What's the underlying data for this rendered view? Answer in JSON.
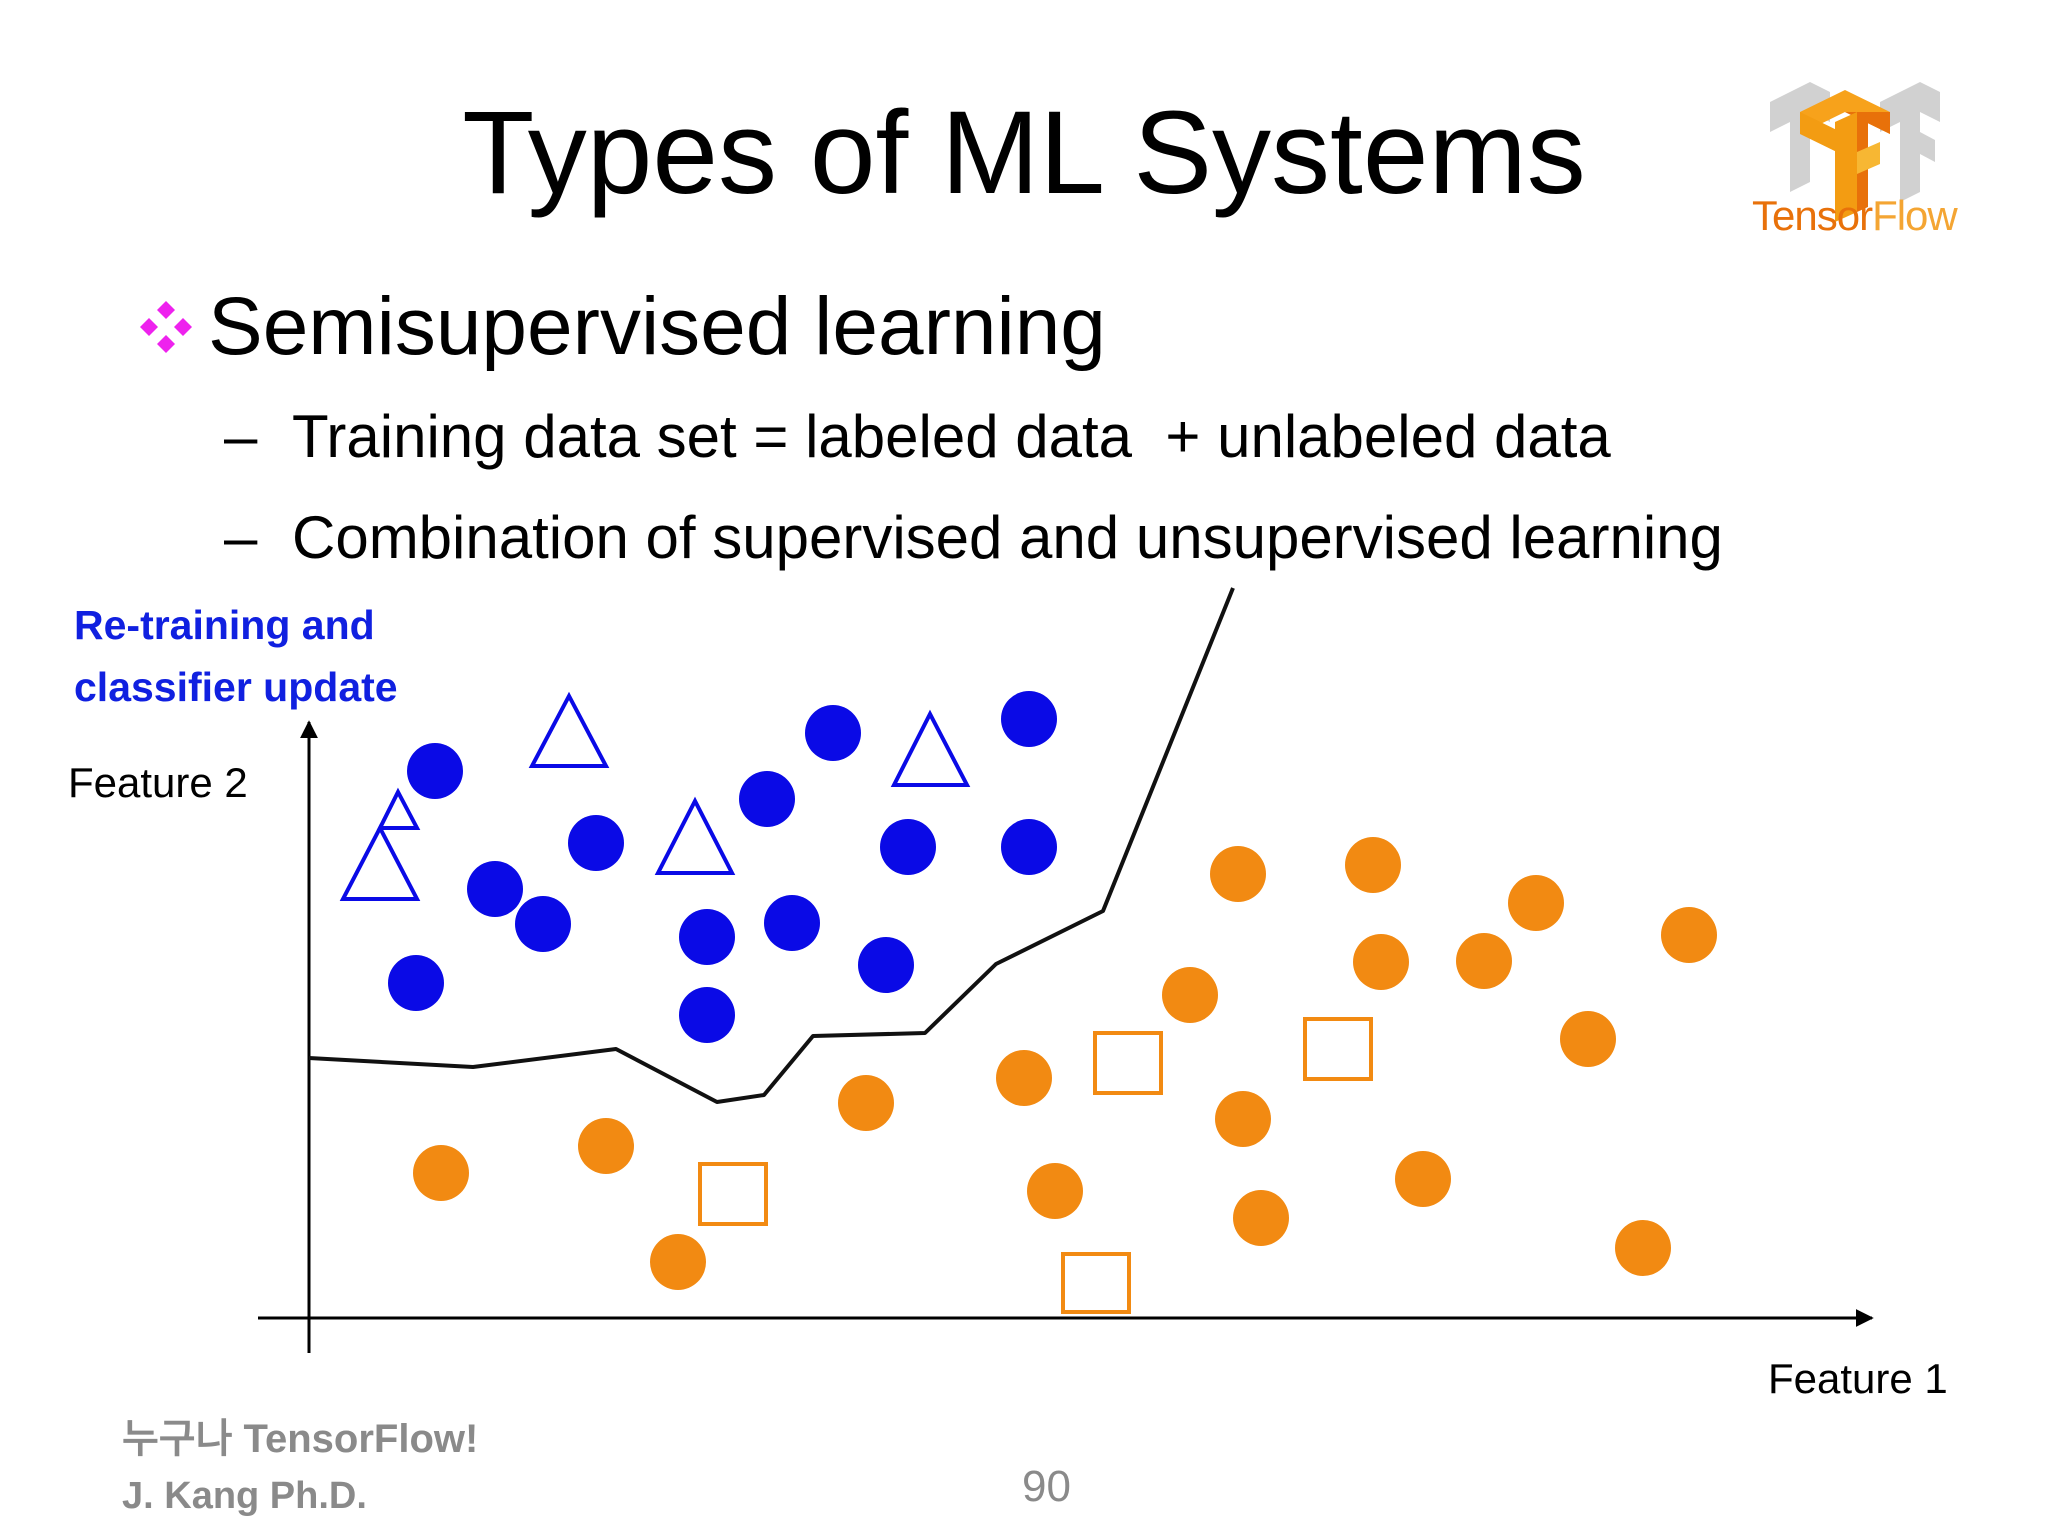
{
  "slide": {
    "title": "Types of ML Systems",
    "logo": {
      "name": "tensorflow-logo",
      "text_part1": "Tensor",
      "text_part2": "Flow",
      "colors": [
        "#e8710a",
        "#f4a533",
        "#bdbdbd"
      ]
    },
    "bullet": "Semisupervised learning",
    "subbullets": [
      {
        "dash": "–",
        "text": "Training data set = labeled data  + unlabeled data"
      },
      {
        "dash": "–",
        "text": "Combination of supervised and unsupervised learning"
      }
    ],
    "diagram": {
      "note_line1": "Re-training and",
      "note_line2": "classifier update",
      "y_axis_label": "Feature 2",
      "x_axis_label": "Feature 1",
      "colors": {
        "class_a": "#0a0ae6",
        "class_b": "#f28a12",
        "boundary": "#111111",
        "note": "#1020e0",
        "bullet_icon": "#ee22ee"
      }
    },
    "footer": {
      "line1": "누구나 TensorFlow!",
      "line2": "J. Kang Ph.D.",
      "page": "90"
    }
  }
}
